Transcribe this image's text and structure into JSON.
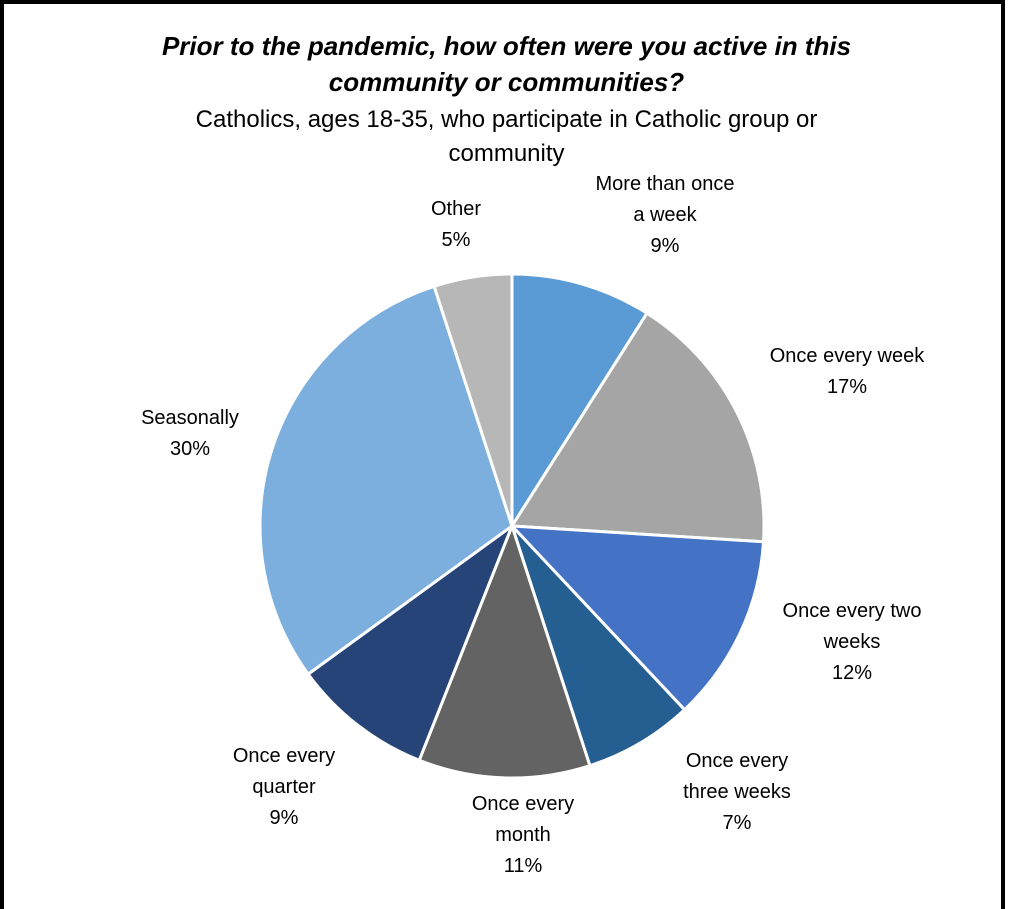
{
  "chart_data": {
    "type": "pie",
    "title_lines": [
      "Prior to the pandemic, how often were you active in this",
      "community or communities?"
    ],
    "subtitle_lines": [
      "Catholics, ages 18-35, who participate in Catholic group or",
      "community"
    ],
    "slices": [
      {
        "label_lines": [
          "More than once",
          "a week"
        ],
        "value": 9,
        "value_text": "9%",
        "color": "#5b9bd5"
      },
      {
        "label_lines": [
          "Once every week"
        ],
        "value": 17,
        "value_text": "17%",
        "color": "#a5a5a5"
      },
      {
        "label_lines": [
          "Once every two",
          "weeks"
        ],
        "value": 12,
        "value_text": "12%",
        "color": "#4472c4"
      },
      {
        "label_lines": [
          "Once every",
          "three weeks"
        ],
        "value": 7,
        "value_text": "7%",
        "color": "#255e91"
      },
      {
        "label_lines": [
          "Once every",
          "month"
        ],
        "value": 11,
        "value_text": "11%",
        "color": "#636363"
      },
      {
        "label_lines": [
          "Once every",
          "quarter"
        ],
        "value": 9,
        "value_text": "9%",
        "color": "#264478"
      },
      {
        "label_lines": [
          "Seasonally"
        ],
        "value": 30,
        "value_text": "30%",
        "color": "#7cafdd"
      },
      {
        "label_lines": [
          "Other"
        ],
        "value": 5,
        "value_text": "5%",
        "color": "#b7b7b7"
      }
    ]
  }
}
